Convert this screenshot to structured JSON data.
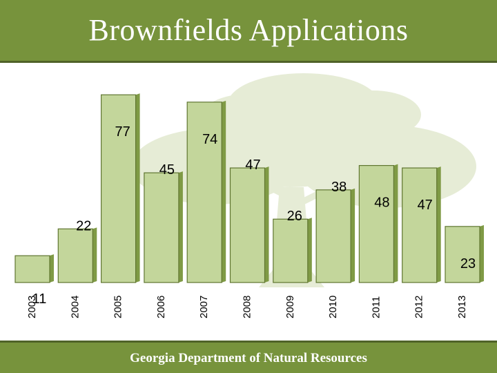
{
  "slide": {
    "title": "Brownfields Applications",
    "footer": "Georgia Department of Natural Resources"
  },
  "colors": {
    "banner": "#77933c",
    "bar_fill": "#c3d69b",
    "bar_edge": "#5f7530",
    "tree_watermark": "#e4ead2"
  },
  "chart_data": {
    "type": "bar",
    "title": "",
    "xlabel": "",
    "ylabel": "",
    "ylim": [
      0,
      85
    ],
    "grid": false,
    "legend": "none",
    "categories": [
      "2003",
      "2004",
      "2005",
      "2006",
      "2007",
      "2008",
      "2009",
      "2010",
      "2011",
      "2012",
      "2013"
    ],
    "values": [
      11,
      22,
      77,
      45,
      74,
      47,
      26,
      38,
      48,
      47,
      23
    ]
  }
}
